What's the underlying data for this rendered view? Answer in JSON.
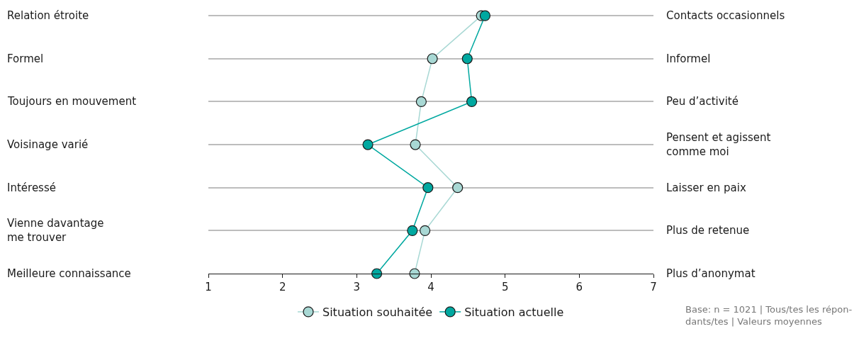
{
  "chart_data": {
    "type": "line",
    "orientation": "horizontal",
    "categories": [
      "Relation étroite",
      "Formel",
      "Toujours en mouvement",
      "Voisinage varié",
      "Intéressé",
      "Vienne davantage\nme trouver",
      "Meilleure connaissance"
    ],
    "y2_categories": [
      "Contacts occasionnels",
      "Informel",
      "Peu d’activité",
      "Pensent et agissent\ncomme moi",
      "Laisser en paix",
      "Plus de retenue",
      "Plus d’anonymat"
    ],
    "series": [
      {
        "name": "Situation souhaitée",
        "color": "#a8d8d4",
        "values": [
          4.68,
          4.02,
          3.87,
          3.79,
          4.36,
          3.92,
          3.78
        ]
      },
      {
        "name": "Situation actuelle",
        "color": "#00a8a0",
        "values": [
          4.73,
          4.49,
          4.55,
          3.15,
          3.96,
          3.75,
          3.27
        ]
      }
    ],
    "xlim": [
      1,
      7
    ],
    "xticks": [
      1,
      2,
      3,
      4,
      5,
      6,
      7
    ],
    "grid": "y",
    "legend": "bottom",
    "marker": "circle",
    "line_style": "solid",
    "annotations": [
      "Base: n = 1021 | Tous/tes les répon-\ndants/tes | Valeurs moyennes"
    ]
  }
}
